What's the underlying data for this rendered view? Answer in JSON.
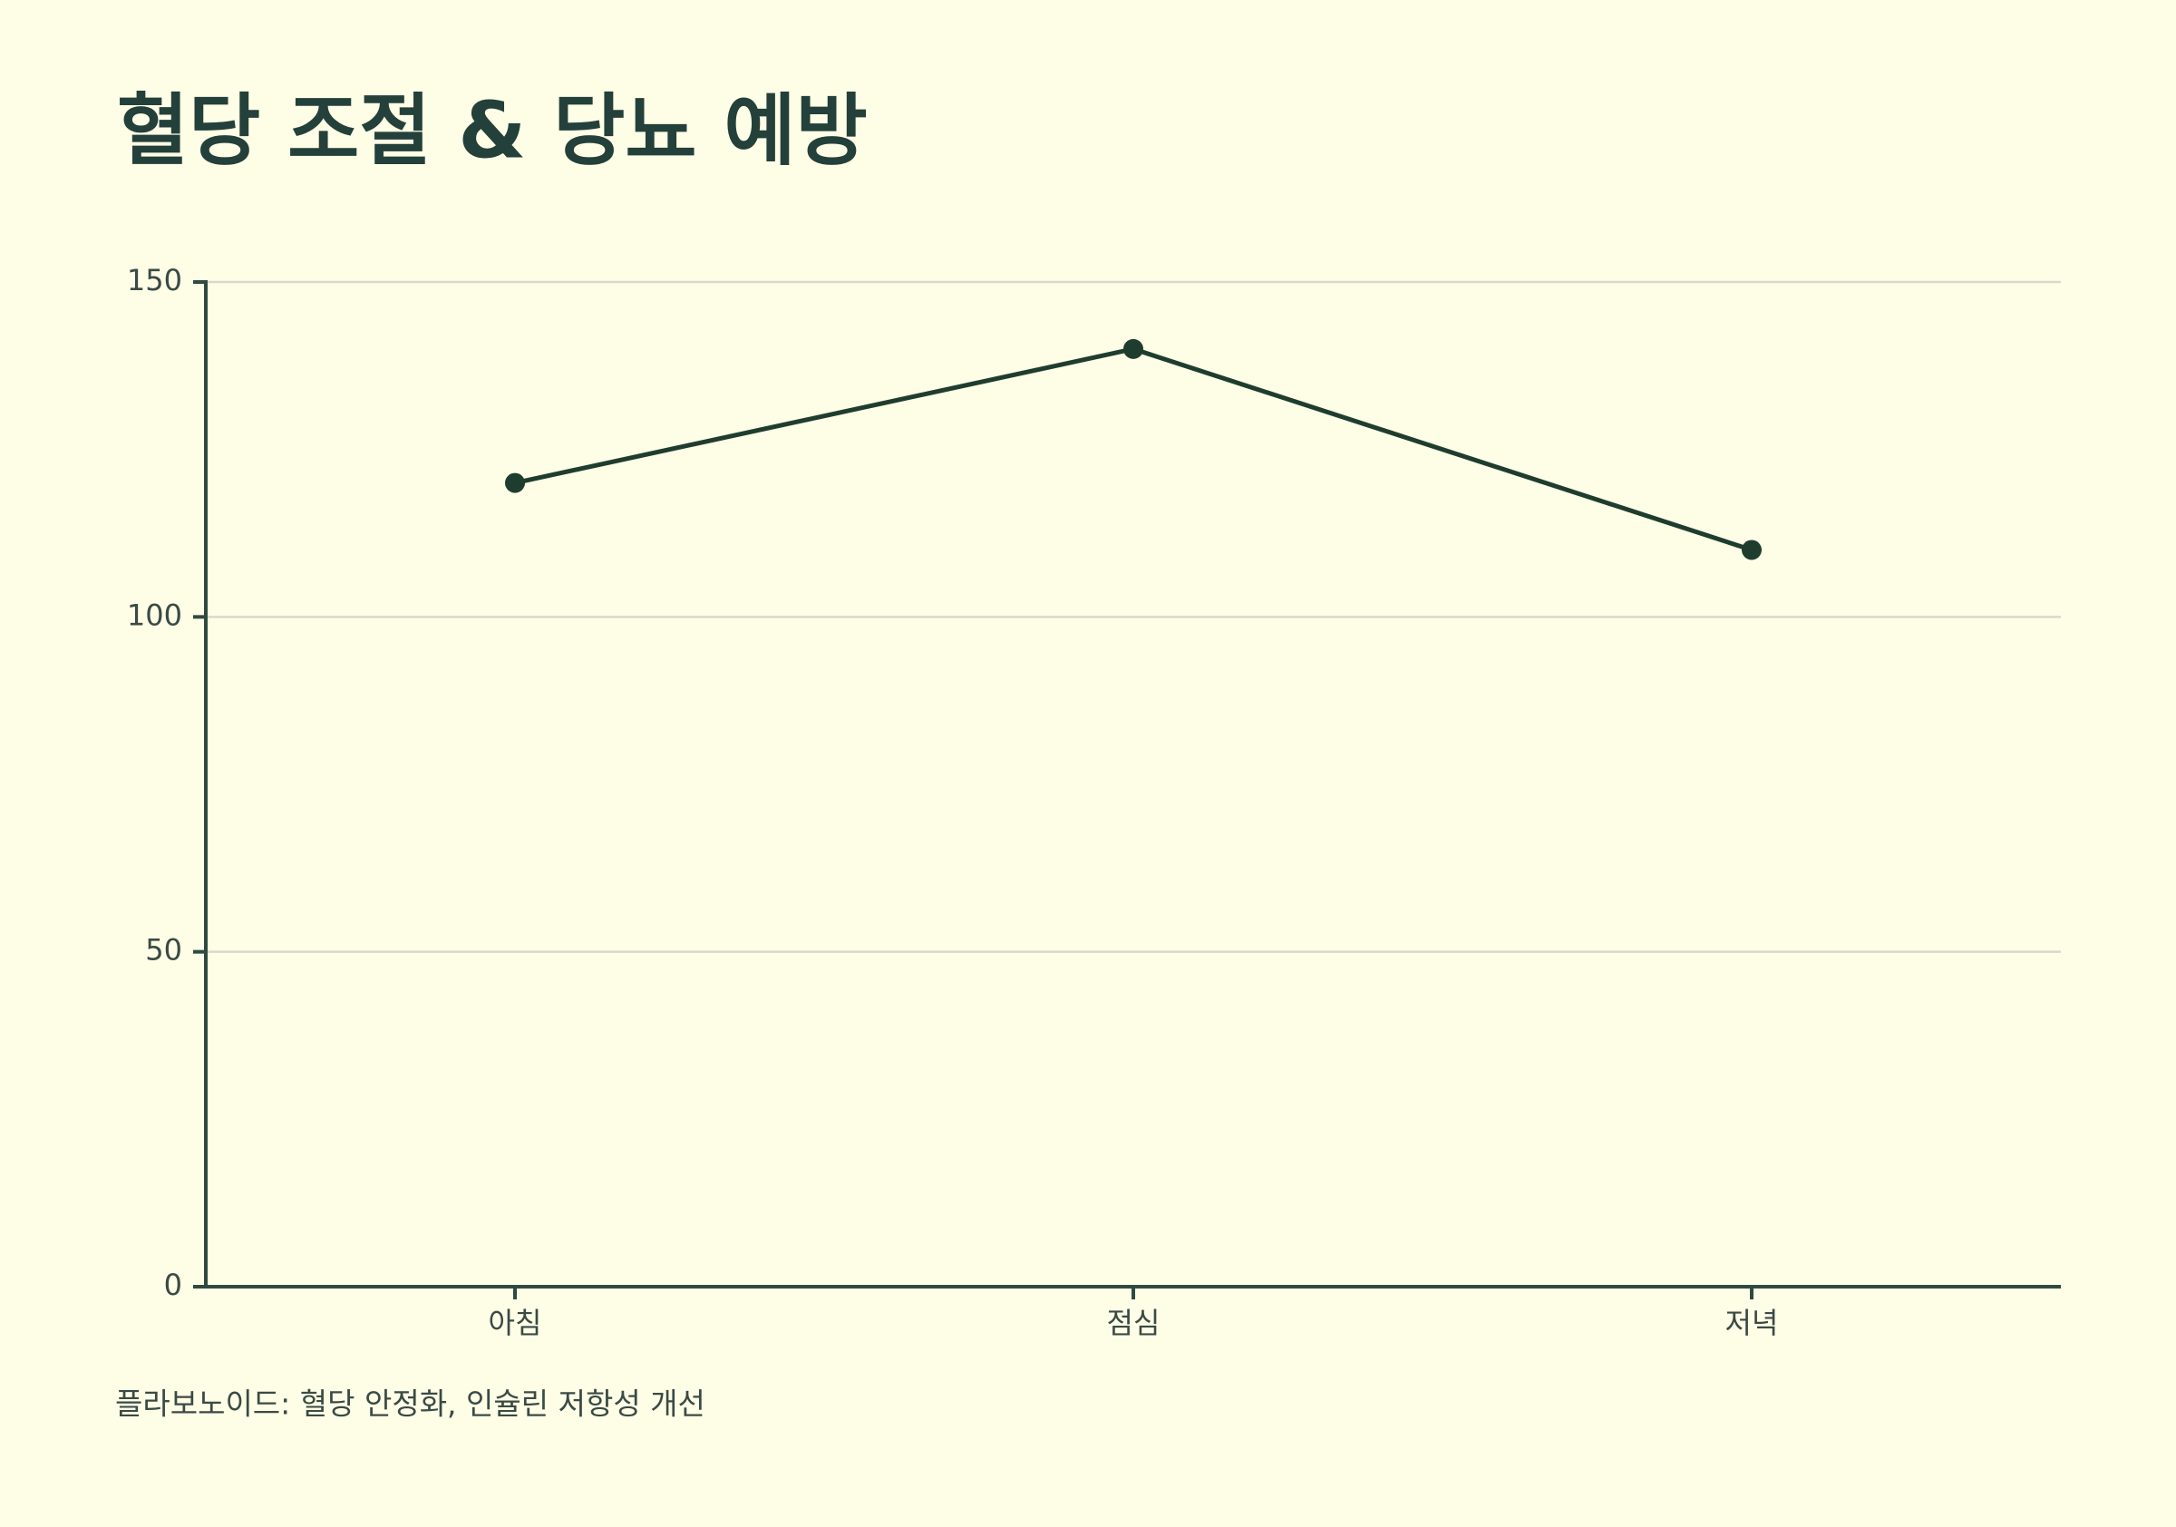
{
  "chart_data": {
    "type": "line",
    "title": "혈당 조절 & 당뇨 예방",
    "categories": [
      "아침",
      "점심",
      "저녁"
    ],
    "series": [
      {
        "name": "혈당",
        "color": "#1f3d2f",
        "values": [
          120,
          140,
          110
        ]
      }
    ],
    "ylim": [
      0,
      150
    ],
    "yticks": [
      0,
      50,
      100,
      150
    ],
    "grid": true,
    "caption": "플라보노이드: 혈당 안정화, 인슐린 저항성 개선"
  }
}
